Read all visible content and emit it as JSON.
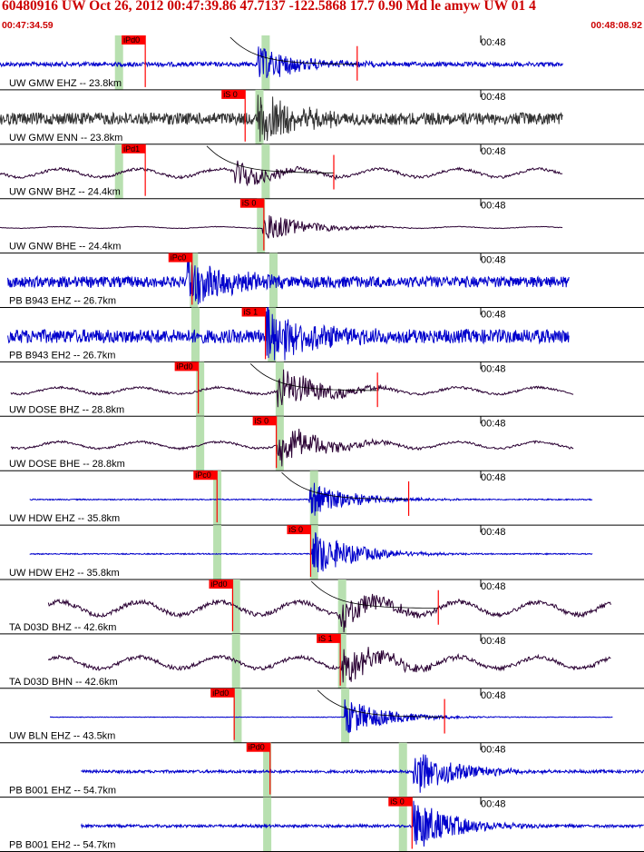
{
  "header": {
    "title": "60480916 UW Oct 26, 2012 00:47:39.86   47.7137 -122.5868 17.7 0.90 Md le amyw UW 01   4",
    "start_time": "00:47:34.59",
    "end_time": "00:48:08.92"
  },
  "colors": {
    "header_text": "#cc0000",
    "trace_blue": "#0000cc",
    "trace_gray": "#333333",
    "trace_dark": "#2a0033",
    "pick_marker": "#ff0000",
    "pick_band": "#b8e0b0",
    "coda_line": "#000000"
  },
  "traces": [
    {
      "label": "UW GMW EHZ -- 23.8km",
      "tick": "00:48",
      "pick": "iPd0",
      "pick_t": 7.8,
      "band_t": [
        7.6,
        17.0
      ],
      "start": 0,
      "end": 36.1,
      "color": "blue",
      "style": "hf",
      "onset": 16.5,
      "amp": 0.35,
      "noise": 0.08,
      "coda": true
    },
    {
      "label": "UW GMW ENN -- 23.8km",
      "tick": "00:48",
      "pick": "iS 0",
      "pick_t": 14.2,
      "band_t": [
        16.6
      ],
      "start": 0,
      "end": 36.1,
      "color": "gray",
      "style": "hf",
      "onset": 16.5,
      "amp": 0.45,
      "noise": 0.22,
      "coda": false
    },
    {
      "label": "UW GNW BHZ -- 24.4km",
      "tick": "00:48",
      "pick": "iPd1",
      "pick_t": 7.8,
      "band_t": [
        7.6,
        17.0
      ],
      "start": 0,
      "end": 36.1,
      "color": "dark",
      "style": "lf",
      "onset": 15.0,
      "amp": 0.25,
      "noise": 0.05,
      "coda": true
    },
    {
      "label": "UW GNW BHE -- 24.4km",
      "tick": "00:48",
      "pick": "iS 0",
      "pick_t": 15.4,
      "band_t": [
        16.7
      ],
      "start": 0,
      "end": 36.1,
      "color": "dark",
      "style": "lf",
      "onset": 16.8,
      "amp": 0.3,
      "noise": 0.01,
      "coda": false
    },
    {
      "label": "PB B943 EHZ -- 26.7km",
      "tick": "00:48",
      "pick": "iPc0",
      "pick_t": 10.8,
      "band_t": [
        12.4,
        17.5
      ],
      "start": 0.5,
      "end": 36.5,
      "color": "blue",
      "style": "hf",
      "onset": 12.0,
      "amp": 0.5,
      "noise": 0.2,
      "coda": false
    },
    {
      "label": "PB B943 EH2 -- 26.7km",
      "tick": "00:48",
      "pick": "iS 1",
      "pick_t": 15.5,
      "band_t": [
        12.5,
        17.4
      ],
      "start": 0.5,
      "end": 36.5,
      "color": "blue",
      "style": "hf",
      "onset": 17.0,
      "amp": 0.6,
      "noise": 0.25,
      "coda": false
    },
    {
      "label": "UW DOSE BHZ -- 28.8km",
      "tick": "00:48",
      "pick": "iPd0",
      "pick_t": 11.2,
      "band_t": [
        12.8,
        17.9
      ],
      "start": 0.7,
      "end": 36.8,
      "color": "dark",
      "style": "lf",
      "onset": 17.8,
      "amp": 0.45,
      "noise": 0.04,
      "coda": true
    },
    {
      "label": "UW DOSE BHE -- 28.8km",
      "tick": "00:48",
      "pick": "iS 0",
      "pick_t": 16.2,
      "band_t": [
        12.8,
        17.9
      ],
      "start": 0.7,
      "end": 36.8,
      "color": "dark",
      "style": "lf",
      "onset": 17.8,
      "amp": 0.45,
      "noise": 0.04,
      "coda": false
    },
    {
      "label": "UW HDW EHZ -- 35.8km",
      "tick": "00:48",
      "pick": "iPc0",
      "pick_t": 12.4,
      "band_t": [
        13.9,
        20.1
      ],
      "start": 1.9,
      "end": 38.0,
      "color": "blue",
      "style": "hf",
      "onset": 19.8,
      "amp": 0.35,
      "noise": 0.02,
      "coda": true
    },
    {
      "label": "UW HDW EH2 -- 35.8km",
      "tick": "00:48",
      "pick": "iS 0",
      "pick_t": 18.4,
      "band_t": [
        13.9,
        20.1
      ],
      "start": 1.9,
      "end": 38.0,
      "color": "blue",
      "style": "hf",
      "onset": 20.0,
      "amp": 0.45,
      "noise": 0.02,
      "coda": false
    },
    {
      "label": "TA D03D BHZ -- 42.6km",
      "tick": "00:48",
      "pick": "iPd0",
      "pick_t": 13.4,
      "band_t": [
        15.1,
        21.9
      ],
      "start": 3.1,
      "end": 39.2,
      "color": "dark",
      "style": "lf",
      "onset": 21.7,
      "amp": 0.35,
      "noise": 0.08,
      "coda": true
    },
    {
      "label": "TA D03D BHN -- 42.6km",
      "tick": "00:48",
      "pick": "iS 1",
      "pick_t": 20.3,
      "band_t": [
        15.1,
        21.9
      ],
      "start": 3.1,
      "end": 39.2,
      "color": "dark",
      "style": "lf",
      "onset": 21.9,
      "amp": 0.4,
      "noise": 0.07,
      "coda": false
    },
    {
      "label": "UW BLN EHZ -- 43.5km",
      "tick": "00:48",
      "pick": "iPd0",
      "pick_t": 13.5,
      "band_t": [
        15.2,
        22.1
      ],
      "start": 3.2,
      "end": 39.3,
      "color": "blue",
      "style": "hf",
      "onset": 22.1,
      "amp": 0.35,
      "noise": 0.01,
      "coda": true
    },
    {
      "label": "PB B001 EHZ -- 54.7km",
      "tick": "00:48",
      "pick": "iPd0",
      "pick_t": 15.8,
      "band_t": [
        17.1,
        25.8
      ],
      "start": 5.2,
      "end": 41.3,
      "color": "blue",
      "style": "hf",
      "onset": 26.5,
      "amp": 0.45,
      "noise": 0.05,
      "coda": false
    },
    {
      "label": "PB B001 EH2 -- 54.7km",
      "tick": "00:48",
      "pick": "iS 0",
      "pick_t": 24.9,
      "band_t": [
        17.1,
        25.8
      ],
      "start": 5.2,
      "end": 41.3,
      "color": "blue",
      "style": "hf",
      "onset": 26.5,
      "amp": 0.5,
      "noise": 0.05,
      "coda": false
    }
  ]
}
